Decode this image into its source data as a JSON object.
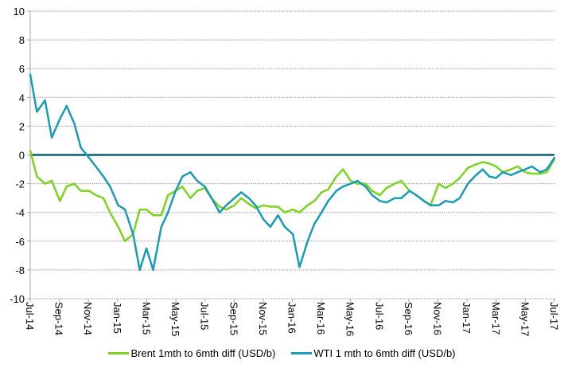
{
  "chart_data": {
    "type": "line",
    "title": "",
    "xlabel": "",
    "ylabel": "",
    "ylim": [
      -10,
      10
    ],
    "yticks": [
      10,
      8,
      6,
      4,
      2,
      0,
      -2,
      -4,
      -6,
      -8,
      -10
    ],
    "xlim": [
      "2014-07-01",
      "2017-07-01"
    ],
    "xtick_labels": [
      "Jul-14",
      "Sep-14",
      "Nov-14",
      "Jan-15",
      "Mar-15",
      "May-15",
      "Jul-15",
      "Sep-15",
      "Nov-15",
      "Jan-16",
      "Mar-16",
      "May-16",
      "Jul-16",
      "Sep-16",
      "Nov-16",
      "Jan-17",
      "Mar-17",
      "May-17",
      "Jul-17"
    ],
    "grid": "horizontal",
    "legend_position": "bottom",
    "reference_line": {
      "y": 0,
      "color": "#0b5f73"
    },
    "x": [
      "2014-07-01",
      "2014-07-15",
      "2014-08-01",
      "2014-08-15",
      "2014-09-01",
      "2014-09-15",
      "2014-10-01",
      "2014-10-15",
      "2014-11-01",
      "2014-11-15",
      "2014-12-01",
      "2014-12-15",
      "2015-01-01",
      "2015-01-15",
      "2015-02-01",
      "2015-02-15",
      "2015-03-01",
      "2015-03-15",
      "2015-04-01",
      "2015-04-15",
      "2015-05-01",
      "2015-05-15",
      "2015-06-01",
      "2015-06-15",
      "2015-07-01",
      "2015-07-15",
      "2015-08-01",
      "2015-08-15",
      "2015-09-01",
      "2015-09-15",
      "2015-10-01",
      "2015-10-15",
      "2015-11-01",
      "2015-11-15",
      "2015-12-01",
      "2015-12-15",
      "2016-01-01",
      "2016-01-15",
      "2016-02-01",
      "2016-02-15",
      "2016-03-01",
      "2016-03-15",
      "2016-04-01",
      "2016-04-15",
      "2016-05-01",
      "2016-05-15",
      "2016-06-01",
      "2016-06-15",
      "2016-07-01",
      "2016-07-15",
      "2016-08-01",
      "2016-08-15",
      "2016-09-01",
      "2016-09-15",
      "2016-10-01",
      "2016-10-15",
      "2016-11-01",
      "2016-11-15",
      "2016-12-01",
      "2016-12-15",
      "2017-01-01",
      "2017-01-15",
      "2017-02-01",
      "2017-02-15",
      "2017-03-01",
      "2017-03-15",
      "2017-04-01",
      "2017-04-15",
      "2017-05-01",
      "2017-05-15",
      "2017-06-01",
      "2017-06-15",
      "2017-07-01"
    ],
    "series": [
      {
        "name": "Brent 1mth to 6mth diff (USD/b)",
        "color": "#7ed321",
        "values": [
          0.3,
          -1.5,
          -2.0,
          -1.8,
          -3.2,
          -2.2,
          -2.0,
          -2.5,
          -2.5,
          -2.8,
          -3.0,
          -4.0,
          -5.0,
          -6.0,
          -5.5,
          -3.8,
          -3.8,
          -4.2,
          -4.2,
          -2.8,
          -2.5,
          -2.2,
          -3.0,
          -2.5,
          -2.3,
          -3.0,
          -3.6,
          -3.8,
          -3.5,
          -3.0,
          -3.4,
          -3.7,
          -3.5,
          -3.6,
          -3.6,
          -4.0,
          -3.8,
          -4.0,
          -3.5,
          -3.2,
          -2.6,
          -2.4,
          -1.5,
          -1.0,
          -1.8,
          -2.0,
          -2.0,
          -2.5,
          -2.8,
          -2.3,
          -2.0,
          -1.8,
          -2.5,
          -2.8,
          -3.2,
          -3.5,
          -2.0,
          -2.3,
          -2.0,
          -1.6,
          -0.9,
          -0.7,
          -0.5,
          -0.6,
          -0.8,
          -1.2,
          -1.0,
          -0.8,
          -1.2,
          -1.3,
          -1.3,
          -1.2,
          -0.3
        ]
      },
      {
        "name": "WTI 1 mth to 6mth diff (USD/b)",
        "color": "#1a9bb5",
        "values": [
          5.6,
          3.0,
          3.8,
          1.2,
          2.5,
          3.4,
          2.2,
          0.5,
          -0.2,
          -0.8,
          -1.5,
          -2.2,
          -3.5,
          -3.8,
          -5.5,
          -8.0,
          -6.5,
          -8.0,
          -5.0,
          -4.0,
          -2.5,
          -1.5,
          -1.2,
          -1.8,
          -2.2,
          -3.0,
          -4.0,
          -3.5,
          -3.0,
          -2.6,
          -3.0,
          -3.5,
          -4.5,
          -5.0,
          -4.2,
          -5.0,
          -5.5,
          -7.8,
          -6.0,
          -4.8,
          -4.0,
          -3.2,
          -2.5,
          -2.2,
          -2.0,
          -1.8,
          -2.2,
          -2.8,
          -3.2,
          -3.3,
          -3.0,
          -3.0,
          -2.5,
          -2.8,
          -3.2,
          -3.5,
          -3.5,
          -3.2,
          -3.3,
          -3.0,
          -2.0,
          -1.5,
          -1.0,
          -1.5,
          -1.6,
          -1.2,
          -1.4,
          -1.2,
          -1.0,
          -0.8,
          -1.2,
          -1.0,
          -0.2
        ]
      }
    ]
  }
}
